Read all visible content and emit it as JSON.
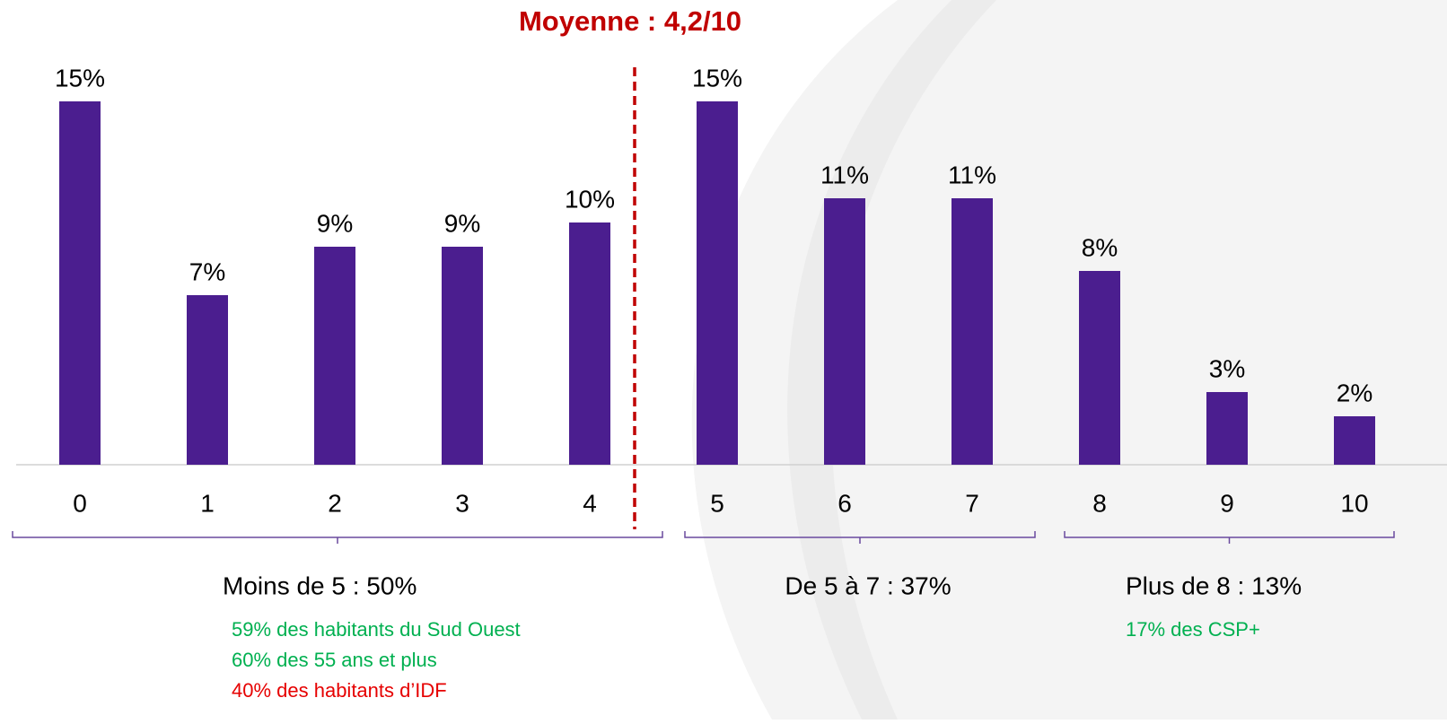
{
  "chart_data": {
    "type": "bar",
    "title": "Moyenne : 4,2/10",
    "categories": [
      "0",
      "1",
      "2",
      "3",
      "4",
      "5",
      "6",
      "7",
      "8",
      "9",
      "10"
    ],
    "values": [
      15,
      7,
      9,
      9,
      10,
      15,
      11,
      11,
      8,
      3,
      2
    ],
    "value_labels": [
      "15%",
      "7%",
      "9%",
      "9%",
      "10%",
      "15%",
      "11%",
      "11%",
      "8%",
      "3%",
      "2%"
    ],
    "color": "#4b1e8f",
    "groups": [
      {
        "label": "Moins de 5 : 50%",
        "notes": [
          {
            "text": "59% des habitants du Sud Ouest",
            "color": "#00b050"
          },
          {
            "text": "60% des 55 ans et plus",
            "color": "#00b050"
          },
          {
            "text": "40% des habitants d’IDF",
            "color": "#e60000"
          }
        ]
      },
      {
        "label": "De 5 à 7 : 37%",
        "notes": []
      },
      {
        "label": "Plus de 8 : 13%",
        "notes": [
          {
            "text": "17% des CSP+",
            "color": "#00b050"
          }
        ]
      }
    ]
  }
}
